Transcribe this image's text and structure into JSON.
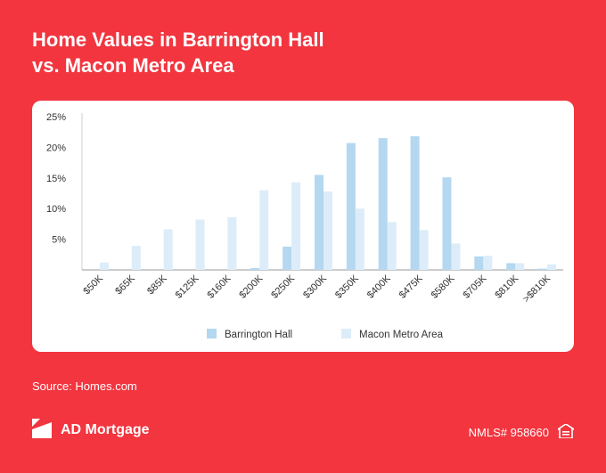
{
  "header": {
    "title_line1": "Home Values in Barrington Hall",
    "title_line2": "vs. Macon Metro Area"
  },
  "footer": {
    "source": "Source: Homes.com",
    "brand": "AD Mortgage",
    "nmls": "NMLS# 958660",
    "logo_icon": "ad-mortgage-logo-icon",
    "housing_icon": "equal-housing-icon"
  },
  "colors": {
    "background": "#f2353f",
    "barrington": "#b3d8f0",
    "macon": "#dcecf9"
  },
  "chart_data": {
    "type": "bar",
    "categories": [
      "$50K",
      "$65K",
      "$85K",
      "$125K",
      "$160K",
      "$200K",
      "$250K",
      "$300K",
      "$350K",
      "$400K",
      "$475K",
      "$580K",
      "$705K",
      "$810K",
      ">$810K"
    ],
    "series": [
      {
        "name": "Barrington Hall",
        "values": [
          0,
          0,
          0,
          0,
          0,
          0.3,
          3.8,
          15.5,
          20.7,
          21.5,
          21.8,
          15.1,
          2.2,
          1.1,
          0.2
        ]
      },
      {
        "name": "Macon Metro Area",
        "values": [
          1.2,
          3.9,
          6.6,
          8.2,
          8.6,
          13.0,
          14.3,
          12.8,
          10.0,
          7.8,
          6.5,
          4.3,
          2.3,
          1.1,
          0.9
        ]
      }
    ],
    "yticks": [
      "5%",
      "10%",
      "15%",
      "20%",
      "25%"
    ],
    "ylim": [
      0,
      25
    ],
    "legend_position": "bottom-center",
    "grid": false
  }
}
